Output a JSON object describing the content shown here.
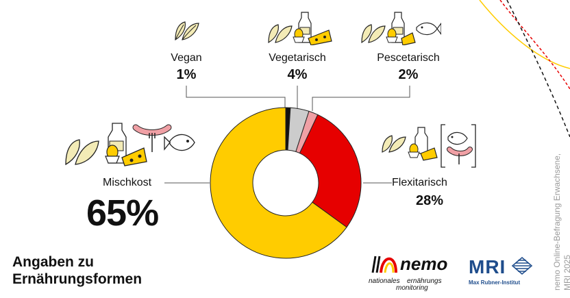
{
  "chart_data": {
    "type": "pie",
    "categories": [
      "Vegan",
      "Vegetarisch",
      "Pescetarisch",
      "Flexitarisch",
      "Mischkost"
    ],
    "values": [
      1,
      4,
      2,
      28,
      65
    ],
    "value_labels": [
      "1%",
      "4%",
      "2%",
      "28%",
      "65%"
    ],
    "colors": [
      "#111111",
      "#cccccc",
      "#f0a0a5",
      "#e60000",
      "#ffcc00"
    ],
    "donut": true
  },
  "title_lines": [
    "Angaben zu",
    "Ernährungsformen"
  ],
  "source_lines": [
    "nemo Online-Befragung Erwachsene,",
    "MRI 2025"
  ],
  "logos": {
    "nemo": {
      "word": "nemo",
      "sub1": "nationales",
      "sub2": "ernährungs",
      "sub3": "monitoring"
    },
    "mri": {
      "word": "MRI",
      "sub": "Max Rubner-Institut"
    }
  },
  "icons": {
    "vegan": [
      "leaf-icon"
    ],
    "vegetarisch": [
      "leaf-icon",
      "egg-icon",
      "milk-icon",
      "cheese-icon"
    ],
    "pescetarisch": [
      "leaf-icon",
      "egg-icon",
      "milk-icon",
      "cheese-icon",
      "fish-icon"
    ],
    "mischkost": [
      "leaf-icon",
      "egg-icon",
      "milk-icon",
      "cheese-icon",
      "sausage-icon",
      "fish-icon"
    ],
    "flexitarisch": [
      "leaf-icon",
      "egg-icon",
      "milk-icon",
      "cheese-icon",
      "fish-icon",
      "sausage-icon"
    ]
  }
}
